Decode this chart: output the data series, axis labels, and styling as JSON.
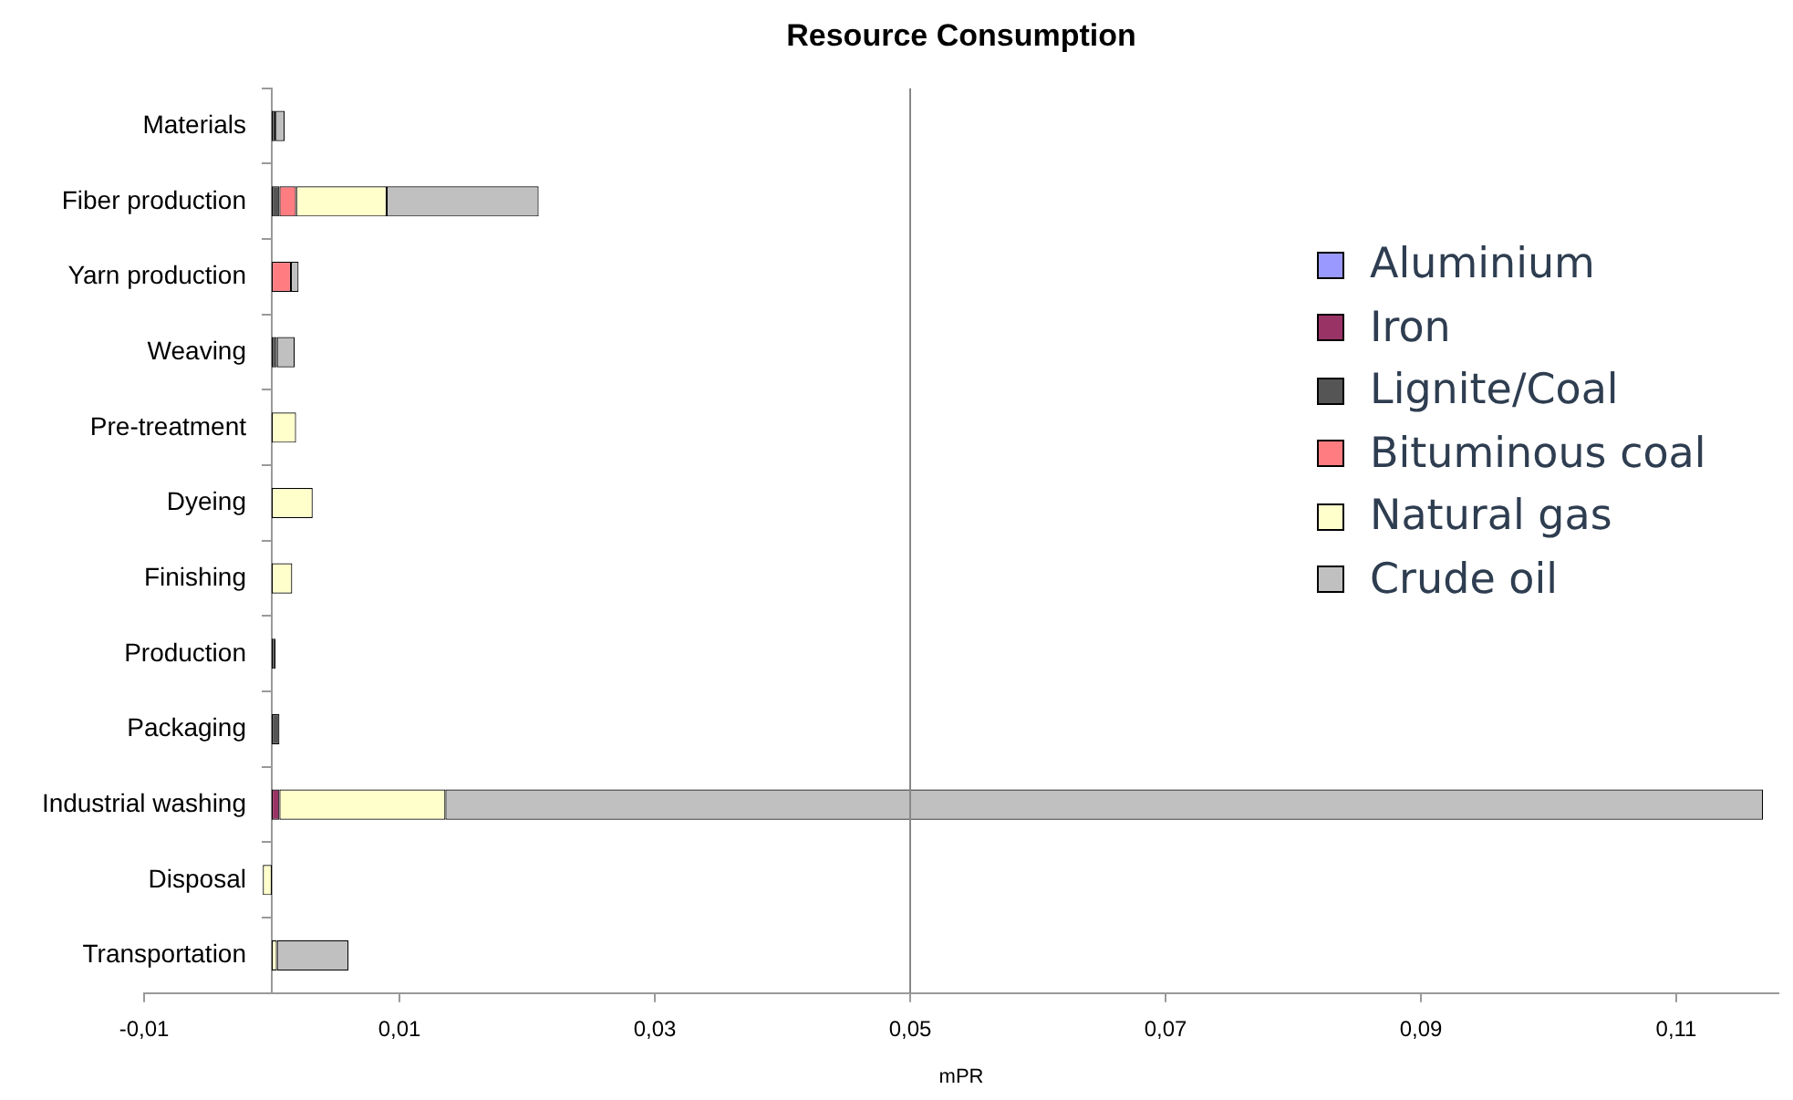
{
  "chart_data": {
    "type": "bar",
    "orientation": "horizontal",
    "stacked": true,
    "title": "Resource Consumption",
    "xlabel": "mPR",
    "categories": [
      "Materials",
      "Fiber production",
      "Yarn production",
      "Weaving",
      "Pre-treatment",
      "Dyeing",
      "Finishing",
      "Production",
      "Packaging",
      "Industrial washing",
      "Disposal",
      "Transportation"
    ],
    "series": [
      {
        "name": "Aluminium",
        "color": "#9999ff",
        "values": [
          null,
          null,
          null,
          null,
          null,
          null,
          null,
          null,
          null,
          null,
          null,
          null
        ]
      },
      {
        "name": "Iron",
        "color": "#993366",
        "values": [
          null,
          null,
          null,
          null,
          null,
          null,
          null,
          null,
          null,
          0.0006,
          null,
          null
        ]
      },
      {
        "name": "Lignite/Coal",
        "color": "#555555",
        "values": [
          0.0003,
          0.0006,
          null,
          0.0004,
          null,
          null,
          null,
          0.0003,
          0.0006,
          null,
          null,
          null
        ]
      },
      {
        "name": "Bituminous coal",
        "color": "#ff7c80",
        "values": [
          null,
          0.0013,
          0.0015,
          null,
          null,
          null,
          null,
          null,
          null,
          null,
          null,
          null
        ]
      },
      {
        "name": "Natural gas",
        "color": "#ffffcc",
        "values": [
          null,
          0.0071,
          null,
          null,
          0.0019,
          0.0032,
          0.0016,
          null,
          null,
          0.013,
          -0.0007,
          0.0004
        ]
      },
      {
        "name": "Crude oil",
        "color": "#c0c0c0",
        "values": [
          0.0007,
          0.0119,
          0.0006,
          0.0014,
          null,
          null,
          null,
          null,
          null,
          0.1032,
          null,
          0.0056
        ]
      }
    ],
    "xlim": [
      -0.01,
      0.118
    ],
    "xticks": [
      {
        "value": -0.01,
        "label": "-0,01"
      },
      {
        "value": 0.01,
        "label": "0,01"
      },
      {
        "value": 0.03,
        "label": "0,03"
      },
      {
        "value": 0.05,
        "label": "0,05"
      },
      {
        "value": 0.07,
        "label": "0,07"
      },
      {
        "value": 0.09,
        "label": "0,09"
      },
      {
        "value": 0.11,
        "label": "0,11"
      }
    ],
    "ref_lines": [
      {
        "axis": "x",
        "value": 0.05,
        "color": "#888888"
      }
    ],
    "grid": false,
    "legend": "right"
  }
}
